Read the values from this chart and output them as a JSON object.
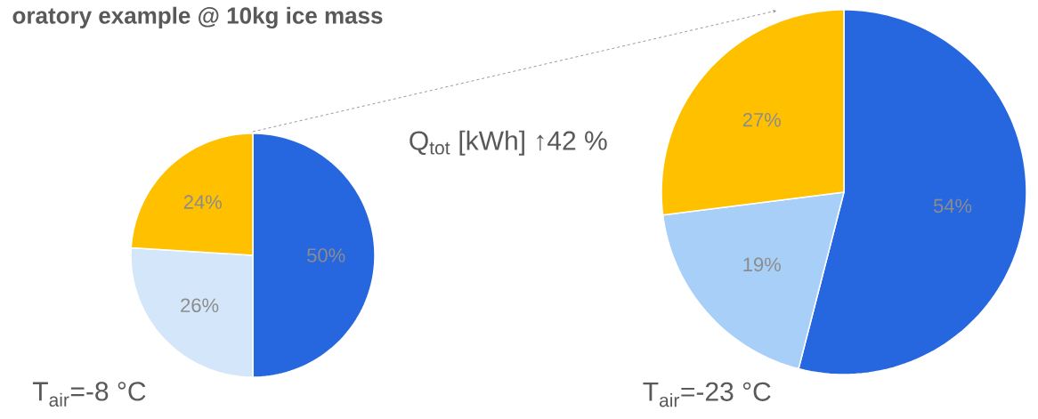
{
  "chart_data": [
    {
      "type": "pie",
      "title": "oratory example @ 10kg ice mass",
      "categories": [
        null,
        null,
        null
      ],
      "values": [
        50,
        26,
        24
      ],
      "colors": [
        "#2667e0",
        "#d4e6fa",
        "#ffc000"
      ],
      "value_labels": [
        "50%",
        "26%",
        "24%"
      ],
      "annotations": [
        "T$_{air}$=-8 °C"
      ]
    },
    {
      "type": "pie",
      "categories": [
        null,
        null,
        null
      ],
      "values": [
        54,
        19,
        27
      ],
      "colors": [
        "#2667e0",
        "#a8cff8",
        "#ffc000"
      ],
      "value_labels": [
        "54%",
        "19%",
        "27%"
      ],
      "annotations": [
        "T$_{air}$=-23 °C",
        "Q$_{tot}$ [kWh] ↑42 %"
      ]
    }
  ]
}
